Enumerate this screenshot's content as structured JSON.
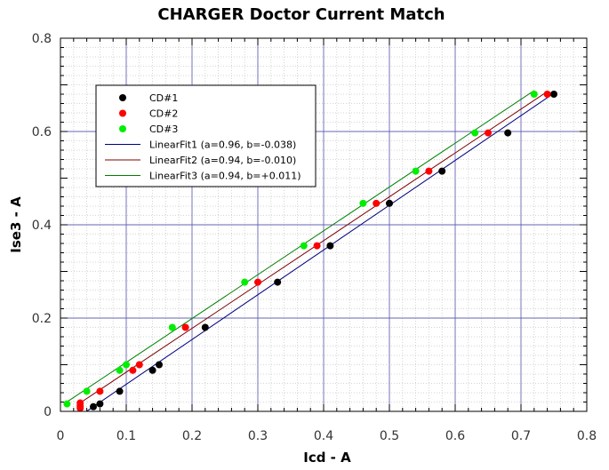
{
  "chart_data": {
    "type": "scatter",
    "title": "CHARGER Doctor Current Match",
    "xlabel": "Icd - A",
    "ylabel": "Ise3 - A",
    "xlim": [
      0,
      0.8
    ],
    "ylim": [
      0,
      0.8
    ],
    "xticks": [
      "0",
      "0.1",
      "0.2",
      "0.3",
      "0.4",
      "0.5",
      "0.6",
      "0.7",
      "0.8"
    ],
    "yticks": [
      "0",
      "0.2",
      "0.4",
      "0.6",
      "0.8"
    ],
    "grid": true,
    "legend_position": "top-left",
    "series": [
      {
        "name": "CD#1",
        "kind": "points",
        "color": "#000000",
        "x": [
          0.05,
          0.06,
          0.09,
          0.14,
          0.15,
          0.22,
          0.33,
          0.41,
          0.5,
          0.58,
          0.68,
          0.75
        ],
        "y": [
          0.01,
          0.016,
          0.043,
          0.088,
          0.1,
          0.18,
          0.277,
          0.355,
          0.446,
          0.515,
          0.597,
          0.68
        ]
      },
      {
        "name": "CD#2",
        "kind": "points",
        "color": "#ff0000",
        "x": [
          0.03,
          0.03,
          0.03,
          0.06,
          0.11,
          0.12,
          0.19,
          0.3,
          0.39,
          0.48,
          0.56,
          0.65,
          0.74
        ],
        "y": [
          0.007,
          0.012,
          0.018,
          0.043,
          0.088,
          0.1,
          0.18,
          0.277,
          0.355,
          0.446,
          0.515,
          0.597,
          0.68
        ]
      },
      {
        "name": "CD#3",
        "kind": "points",
        "color": "#00ee00",
        "x": [
          0.01,
          0.04,
          0.09,
          0.1,
          0.17,
          0.28,
          0.37,
          0.46,
          0.54,
          0.63,
          0.72
        ],
        "y": [
          0.016,
          0.043,
          0.088,
          0.1,
          0.18,
          0.277,
          0.355,
          0.446,
          0.515,
          0.597,
          0.68
        ]
      },
      {
        "name": "LinearFit1 (a=0.96, b=-0.038)",
        "kind": "line",
        "color": "#00007f",
        "a": 0.96,
        "b": -0.038,
        "x_range": [
          0.04,
          0.75
        ]
      },
      {
        "name": "LinearFit2 (a=0.94, b=-0.010)",
        "kind": "line",
        "color": "#7f0000",
        "a": 0.94,
        "b": -0.01,
        "x_range": [
          0.03,
          0.74
        ]
      },
      {
        "name": "LinearFit3 (a=0.94, b=+0.011)",
        "kind": "line",
        "color": "#007f00",
        "a": 0.94,
        "b": 0.011,
        "x_range": [
          0.01,
          0.72
        ]
      }
    ]
  }
}
